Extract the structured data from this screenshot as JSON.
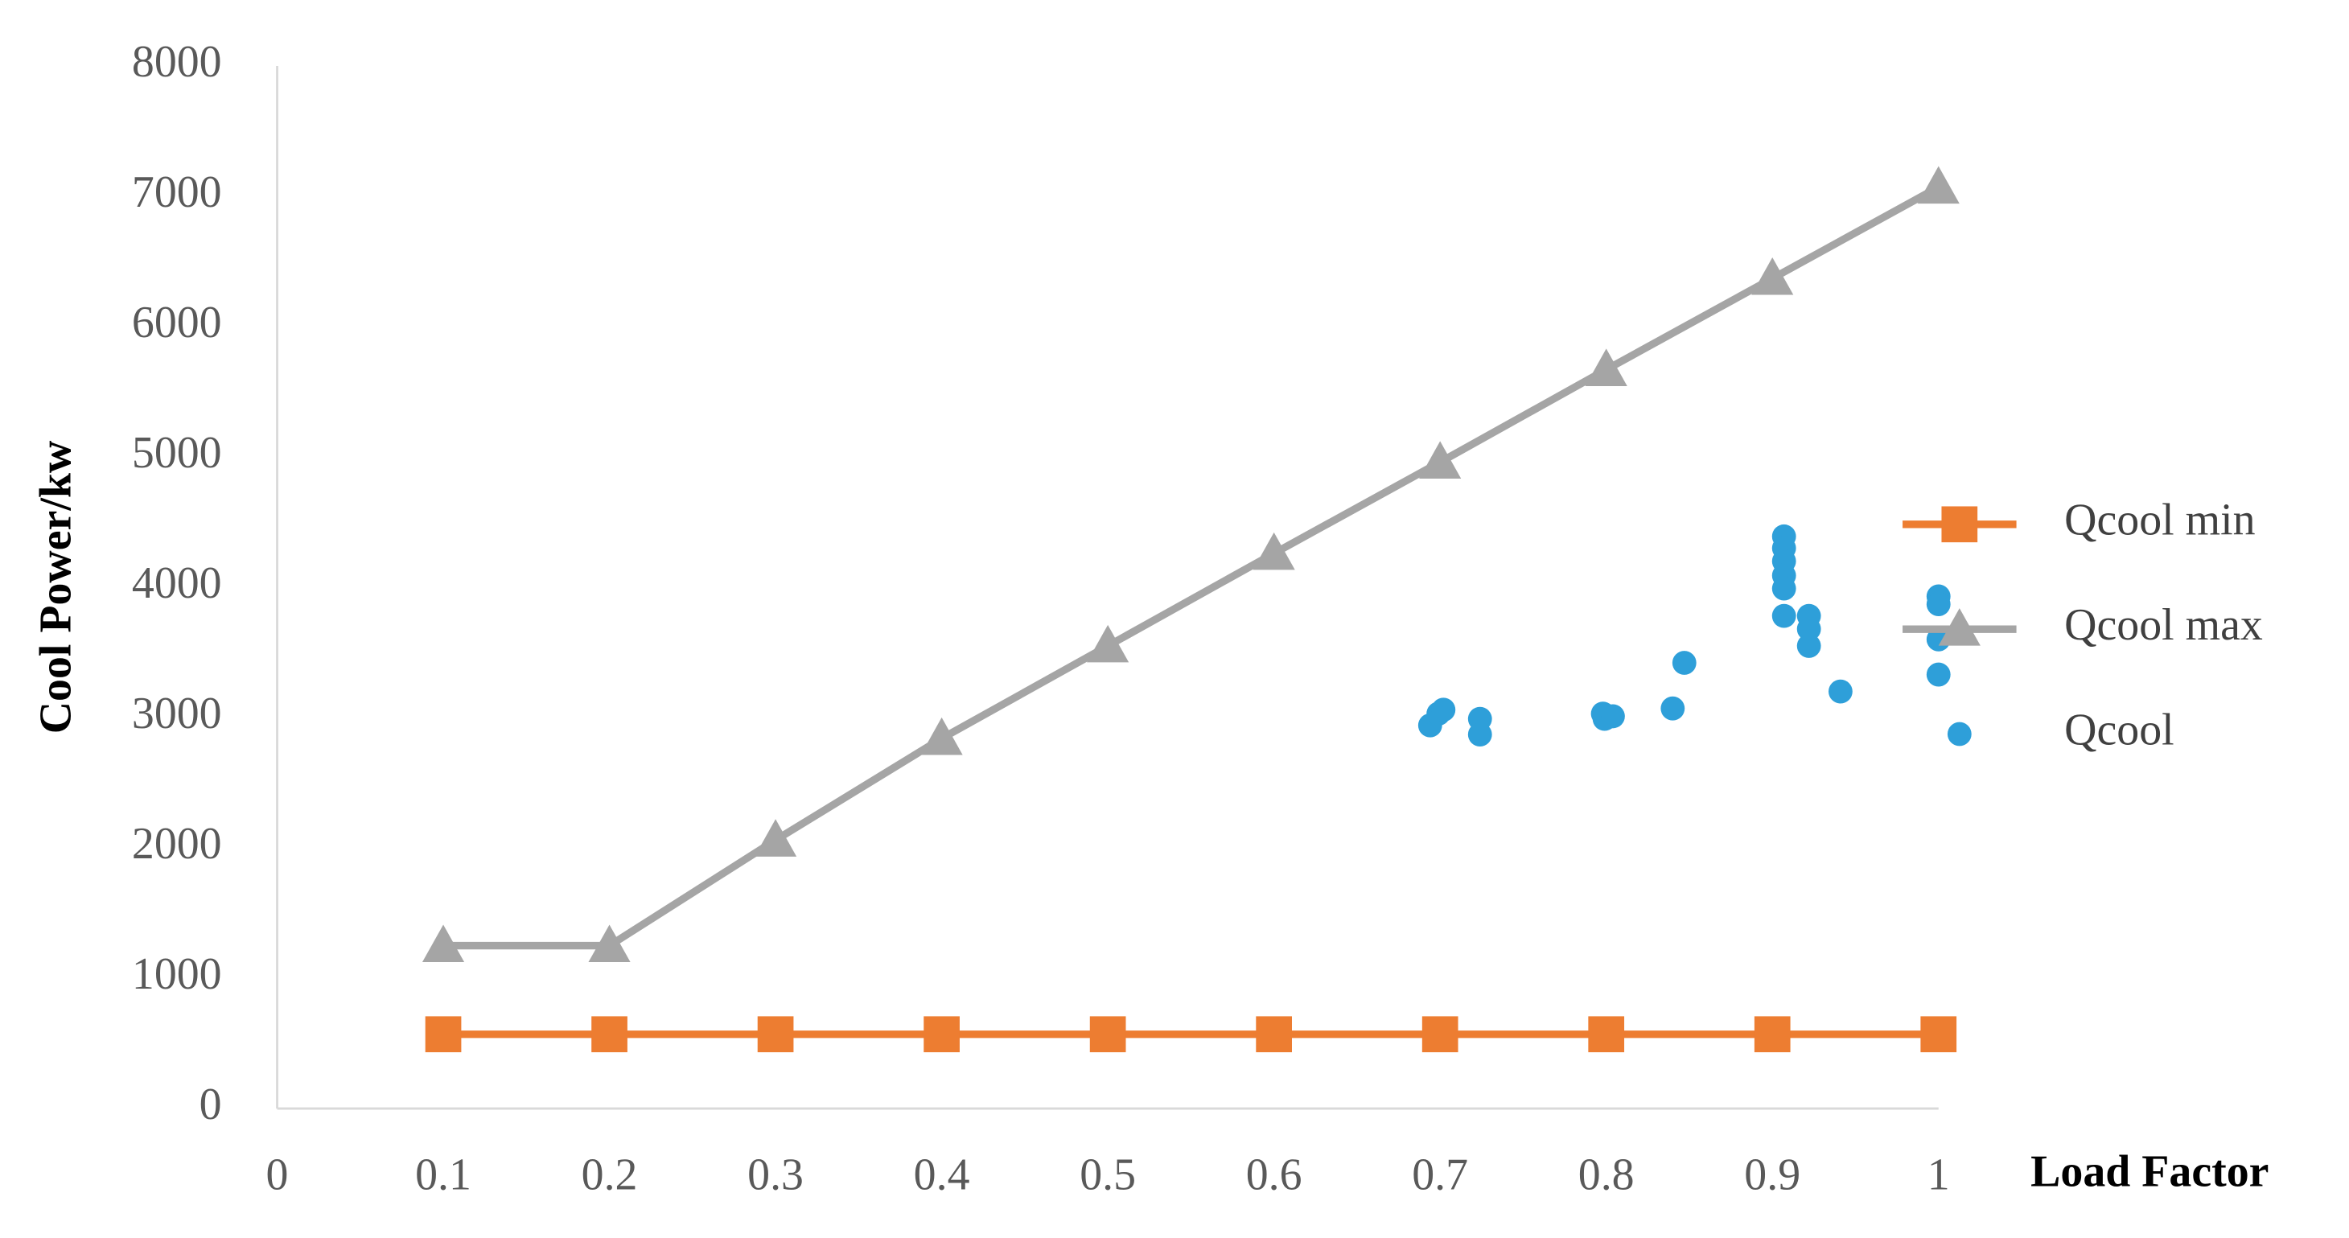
{
  "chart_data": {
    "type": "line",
    "x_label": "Load Factor",
    "y_label": "Cool Power/kw",
    "xlim": [
      0,
      1
    ],
    "xticks": [
      0,
      0.1,
      0.2,
      0.3,
      0.4,
      0.5,
      0.6,
      0.7,
      0.8,
      0.9,
      1
    ],
    "ylim": [
      0,
      8000
    ],
    "yticks": [
      0,
      1000,
      2000,
      3000,
      4000,
      5000,
      6000,
      7000,
      8000
    ],
    "grid": false,
    "legend": "right",
    "series": [
      {
        "name": "Qcool min",
        "color": "#ed7d31",
        "marker": "square",
        "line": true,
        "x": [
          0.1,
          0.2,
          0.3,
          0.4,
          0.5,
          0.6,
          0.7,
          0.8,
          0.9,
          1
        ],
        "values": [
          570,
          570,
          570,
          570,
          570,
          570,
          570,
          570,
          570,
          570
        ]
      },
      {
        "name": "Qcool max",
        "color": "#a5a5a5",
        "marker": "triangle",
        "line": true,
        "x": [
          0.1,
          0.2,
          0.3,
          0.4,
          0.5,
          0.6,
          0.7,
          0.8,
          0.9,
          1
        ],
        "values": [
          1250,
          1250,
          2060,
          2840,
          3550,
          4260,
          4960,
          5670,
          6370,
          7070
        ]
      },
      {
        "name": "Qcool",
        "color": "#2e9fd9",
        "marker": "circle",
        "line": false,
        "x": [
          0.694,
          0.699,
          0.702,
          0.724,
          0.724,
          0.798,
          0.799,
          0.804,
          0.84,
          0.847,
          0.907,
          0.907,
          0.907,
          0.907,
          0.907,
          0.907,
          0.922,
          0.922,
          0.922,
          0.941,
          1,
          1,
          1,
          1
        ],
        "values": [
          2940,
          3030,
          3060,
          2990,
          2870,
          3030,
          2990,
          3010,
          3070,
          3420,
          4390,
          4300,
          4200,
          4090,
          3990,
          3780,
          3780,
          3680,
          3550,
          3200,
          3930,
          3870,
          3600,
          3330
        ]
      }
    ]
  }
}
